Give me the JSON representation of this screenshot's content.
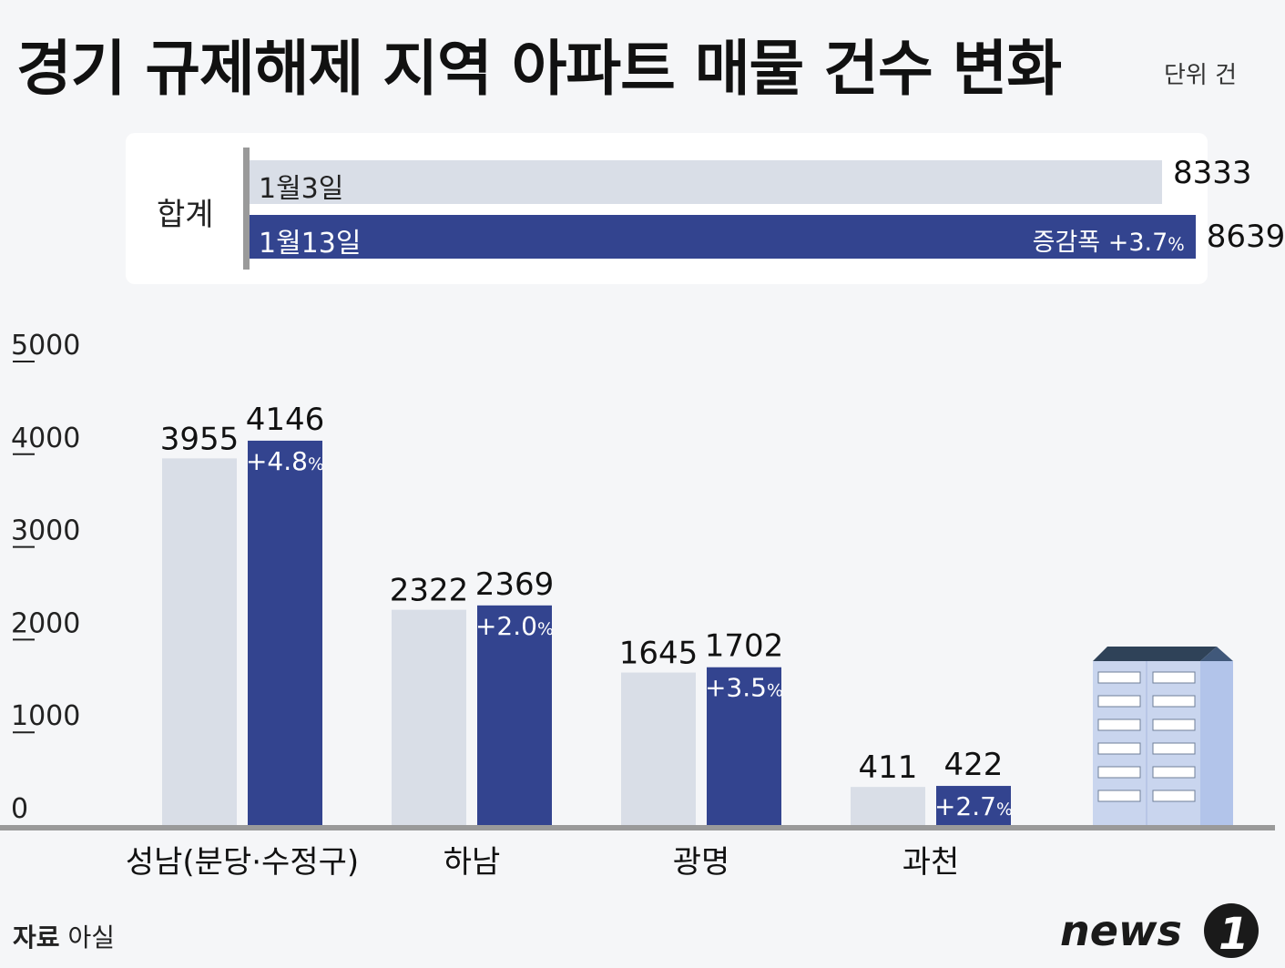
{
  "title": "경기 규제해제 지역 아파트 매물 건수 변화",
  "unit": "단위 건",
  "summary": {
    "label": "합계",
    "rows": [
      {
        "date": "1월3일",
        "value": 8333,
        "value_text": "8333"
      },
      {
        "date": "1월13일",
        "value": 8639,
        "value_text": "8639",
        "change_prefix": "증감폭 +3.7",
        "change_suffix": "%"
      }
    ]
  },
  "chart_data": {
    "type": "bar",
    "categories": [
      "성남(분당·수정구)",
      "하남",
      "광명",
      "과천"
    ],
    "series": [
      {
        "name": "1월3일",
        "values": [
          3955,
          2322,
          1645,
          411
        ],
        "color": "#d9dee7"
      },
      {
        "name": "1월13일",
        "values": [
          4146,
          2369,
          1702,
          422
        ],
        "color": "#33448f",
        "changes": [
          "+4.8",
          "+2.0",
          "+3.5",
          "+2.7"
        ]
      }
    ],
    "change_unit": "%",
    "ylim": [
      0,
      5000
    ],
    "yticks": [
      0,
      1000,
      2000,
      3000,
      4000,
      5000
    ],
    "ylabel": "",
    "xlabel": ""
  },
  "source": {
    "label": "자료",
    "value": "아실"
  },
  "logo": {
    "text": "news",
    "mark": "1"
  },
  "colors": {
    "light": "#d9dee7",
    "dark": "#33448f",
    "axis": "#9a9a9a",
    "building": "#c9d5ee",
    "building_roof": "#2f4258"
  }
}
